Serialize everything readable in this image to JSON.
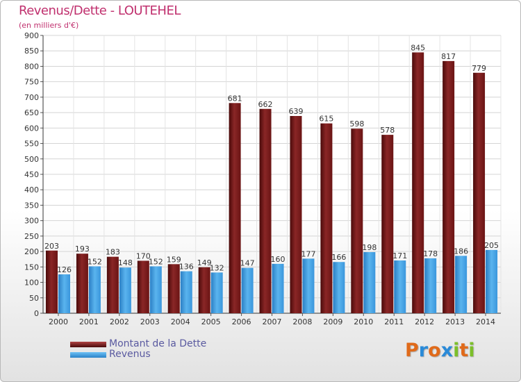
{
  "chart_data": {
    "type": "bar",
    "title": "Revenus/Dette - LOUTEHEL",
    "subtitle": "(en milliers d'€)",
    "categories": [
      "2000",
      "2001",
      "2002",
      "2003",
      "2004",
      "2005",
      "2006",
      "2007",
      "2008",
      "2009",
      "2010",
      "2011",
      "2012",
      "2013",
      "2014"
    ],
    "series": [
      {
        "name": "Montant de la Dette",
        "color": "#7a1a1a",
        "values": [
          203,
          193,
          183,
          170,
          159,
          149,
          681,
          662,
          639,
          615,
          598,
          578,
          845,
          817,
          779
        ]
      },
      {
        "name": "Revenus",
        "color": "#3a9ae0",
        "values": [
          126,
          152,
          148,
          152,
          136,
          132,
          147,
          160,
          177,
          166,
          198,
          171,
          178,
          186,
          205
        ]
      }
    ],
    "ylim": [
      0,
      900
    ],
    "yticks": [
      0,
      50,
      100,
      150,
      200,
      250,
      300,
      350,
      400,
      450,
      500,
      550,
      600,
      650,
      700,
      750,
      800,
      850,
      900
    ],
    "grid": true,
    "xlabel": "",
    "ylabel": ""
  },
  "logo": {
    "letters": [
      "P",
      "r",
      "o",
      "x",
      "i",
      "t",
      "i"
    ],
    "colors": [
      "#e06a1a",
      "#2a8ad8",
      "#e06a1a",
      "#2a8ad8",
      "#7cbf2a",
      "#e06a1a",
      "#7cbf2a"
    ]
  }
}
